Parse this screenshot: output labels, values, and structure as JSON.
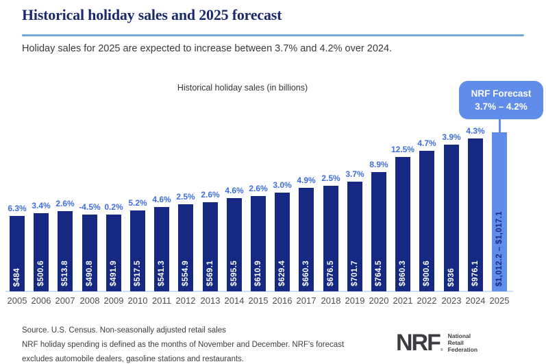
{
  "header": {
    "title": "Historical holiday sales and 2025 forecast",
    "subtitle": "Holiday sales for 2025 are expected to increase between 3.7% and 4.2% over 2024."
  },
  "chart": {
    "title": "Historical holiday sales (in billions)",
    "forecast_badge": {
      "line1": "NRF Forecast",
      "line2": "3.7% – 4.2%"
    }
  },
  "chart_data": {
    "type": "bar",
    "title": "Historical holiday sales (in billions)",
    "categories": [
      "2005",
      "2006",
      "2007",
      "2008",
      "2009",
      "2010",
      "2011",
      "2012",
      "2013",
      "2014",
      "2015",
      "2016",
      "2017",
      "2018",
      "2019",
      "2020",
      "2021",
      "2022",
      "2023",
      "2024",
      "2025"
    ],
    "values": [
      484,
      500.6,
      513.8,
      490.8,
      491.9,
      517.5,
      541.3,
      554.9,
      569.1,
      595.5,
      610.9,
      629.4,
      660.3,
      676.5,
      701.7,
      764.5,
      860.3,
      900.6,
      936,
      976.1,
      1017.1
    ],
    "bar_value_labels": [
      "$484",
      "$500.6",
      "$513.8",
      "$490.8",
      "$491.9",
      "$517.5",
      "$541.3",
      "$554.9",
      "$569.1",
      "$595.5",
      "$610.9",
      "$629.4",
      "$660.3",
      "$676.5",
      "$701.7",
      "$764.5",
      "$860.3",
      "$900.6",
      "$936",
      "$976.1",
      "$1,012.2 – $1,017.1"
    ],
    "pct_change_labels": [
      "6.3%",
      "3.4%",
      "2.6%",
      "-4.5%",
      "0.2%",
      "5.2%",
      "4.6%",
      "2.5%",
      "2.6%",
      "4.6%",
      "2.6%",
      "3.0%",
      "4.9%",
      "2.5%",
      "3.7%",
      "8.9%",
      "12.5%",
      "4.7%",
      "3.9%",
      "4.3%",
      ""
    ],
    "forecast_index": 20,
    "forecast_range": [
      1012.2,
      1017.1
    ],
    "forecast_label": "NRF Forecast 3.7% – 4.2%",
    "xlabel": "",
    "ylabel": "",
    "ylim": [
      0,
      1050
    ],
    "grid": false,
    "legend": "none",
    "colors": {
      "bar": "#152882",
      "forecast_bar": "#5f8de9",
      "pct_label": "#3d6ee0",
      "bar_value_label": "#ffffff",
      "forecast_value_label": "#152882",
      "baseline": "#c9dff4",
      "badge": "#5f8de9",
      "title_navy": "#1a2a6c",
      "divider_blue": "#74a9e0"
    }
  },
  "footer": {
    "source_line1": "Source. U.S. Census. Non-seasonally adjusted retail sales",
    "source_line2": "NRF holiday spending is defined as the months of November and December. NRF's forecast",
    "source_line3": "excludes automobile dealers, gasoline stations and restaurants.",
    "logo": {
      "acronym": "NRF",
      "name_lines": [
        "National",
        "Retail",
        "Federation"
      ]
    }
  }
}
